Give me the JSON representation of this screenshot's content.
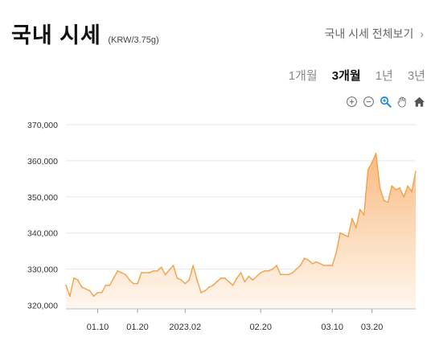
{
  "header": {
    "title": "국내 시세",
    "unit": "(KRW/3.75g)"
  },
  "more_link": {
    "label": "국내 시세 전체보기",
    "chevron": "›"
  },
  "periods": [
    {
      "label": "1개월",
      "active": false
    },
    {
      "label": "3개월",
      "active": true
    },
    {
      "label": "1년",
      "active": false
    },
    {
      "label": "3년",
      "active": false
    }
  ],
  "toolbar": [
    "zoom-in-icon",
    "zoom-out-icon",
    "magnify-icon",
    "pan-hand-icon",
    "home-icon"
  ],
  "colors": {
    "line": "#f4a04a",
    "fill_top": "#f8b77a",
    "fill_bottom": "#fff6ee",
    "grid": "#e6e6e6",
    "accent_zoom": "#1f86d6"
  },
  "chart_data": {
    "type": "area",
    "ylim": [
      319000,
      372000
    ],
    "yticks": [
      320000,
      330000,
      340000,
      350000,
      360000,
      370000
    ],
    "ytick_labels": [
      "320,000",
      "330,000",
      "340,000",
      "350,000",
      "360,000",
      "370,000"
    ],
    "xlim": [
      "2023-01-02",
      "2023-03-31"
    ],
    "xticks": [
      "2023-01-10",
      "2023-01-20",
      "2023-02-01",
      "2023-02-20",
      "2023-03-10",
      "2023-03-20"
    ],
    "xtick_labels": [
      "01.10",
      "01.20",
      "2023.02",
      "02.20",
      "03.10",
      "03.20"
    ],
    "grid": true,
    "series": [
      {
        "points": [
          [
            "2023-01-02",
            325500
          ],
          [
            "2023-01-03",
            322500
          ],
          [
            "2023-01-04",
            327500
          ],
          [
            "2023-01-05",
            327000
          ],
          [
            "2023-01-06",
            325000
          ],
          [
            "2023-01-08",
            324000
          ],
          [
            "2023-01-09",
            322500
          ],
          [
            "2023-01-10",
            323500
          ],
          [
            "2023-01-11",
            323500
          ],
          [
            "2023-01-12",
            325500
          ],
          [
            "2023-01-13",
            325500
          ],
          [
            "2023-01-15",
            329500
          ],
          [
            "2023-01-16",
            329000
          ],
          [
            "2023-01-17",
            328500
          ],
          [
            "2023-01-18",
            327000
          ],
          [
            "2023-01-19",
            326000
          ],
          [
            "2023-01-20",
            326000
          ],
          [
            "2023-01-21",
            329000
          ],
          [
            "2023-01-23",
            329000
          ],
          [
            "2023-01-24",
            329500
          ],
          [
            "2023-01-25",
            329500
          ],
          [
            "2023-01-26",
            330500
          ],
          [
            "2023-01-27",
            328500
          ],
          [
            "2023-01-29",
            331000
          ],
          [
            "2023-01-30",
            327500
          ],
          [
            "2023-01-31",
            327000
          ],
          [
            "2023-02-01",
            326000
          ],
          [
            "2023-02-02",
            327000
          ],
          [
            "2023-02-03",
            331000
          ],
          [
            "2023-02-04",
            327000
          ],
          [
            "2023-02-05",
            323500
          ],
          [
            "2023-02-06",
            324000
          ],
          [
            "2023-02-07",
            325000
          ],
          [
            "2023-02-08",
            325500
          ],
          [
            "2023-02-09",
            326500
          ],
          [
            "2023-02-10",
            327500
          ],
          [
            "2023-02-11",
            327500
          ],
          [
            "2023-02-13",
            325500
          ],
          [
            "2023-02-14",
            327500
          ],
          [
            "2023-02-15",
            329000
          ],
          [
            "2023-02-16",
            326500
          ],
          [
            "2023-02-17",
            328000
          ],
          [
            "2023-02-18",
            327000
          ],
          [
            "2023-02-20",
            329000
          ],
          [
            "2023-02-21",
            329500
          ],
          [
            "2023-02-22",
            329500
          ],
          [
            "2023-02-23",
            330000
          ],
          [
            "2023-02-24",
            331000
          ],
          [
            "2023-02-25",
            328500
          ],
          [
            "2023-02-27",
            328500
          ],
          [
            "2023-02-28",
            329000
          ],
          [
            "2023-03-01",
            330000
          ],
          [
            "2023-03-02",
            331000
          ],
          [
            "2023-03-03",
            333000
          ],
          [
            "2023-03-04",
            332500
          ],
          [
            "2023-03-05",
            331500
          ],
          [
            "2023-03-06",
            332000
          ],
          [
            "2023-03-07",
            331500
          ],
          [
            "2023-03-08",
            331000
          ],
          [
            "2023-03-09",
            331000
          ],
          [
            "2023-03-10",
            331000
          ],
          [
            "2023-03-11",
            334500
          ],
          [
            "2023-03-12",
            340000
          ],
          [
            "2023-03-13",
            339500
          ],
          [
            "2023-03-14",
            339000
          ],
          [
            "2023-03-15",
            344000
          ],
          [
            "2023-03-16",
            341500
          ],
          [
            "2023-03-17",
            346500
          ],
          [
            "2023-03-18",
            345000
          ],
          [
            "2023-03-19",
            357500
          ],
          [
            "2023-03-20",
            359500
          ],
          [
            "2023-03-21",
            362000
          ],
          [
            "2023-03-22",
            352500
          ],
          [
            "2023-03-23",
            349000
          ],
          [
            "2023-03-24",
            348500
          ],
          [
            "2023-03-25",
            353000
          ],
          [
            "2023-03-26",
            352000
          ],
          [
            "2023-03-27",
            352500
          ],
          [
            "2023-03-28",
            350000
          ],
          [
            "2023-03-29",
            353000
          ],
          [
            "2023-03-30",
            351500
          ],
          [
            "2023-03-31",
            357000
          ]
        ]
      }
    ]
  }
}
